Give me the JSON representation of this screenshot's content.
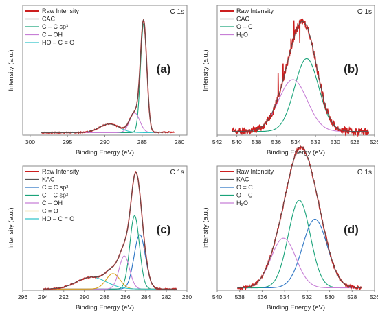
{
  "chart_data": [
    {
      "type": "line",
      "panel_label": "(a)",
      "corner_label": "C 1s",
      "xlabel": "Binding Energy (eV)",
      "ylabel": "Intensity (a.u.)",
      "xlim": [
        301,
        279
      ],
      "xticks": [
        300,
        295,
        290,
        285,
        280
      ],
      "ylim": [
        0,
        1.05
      ],
      "x_reversed": true,
      "legend": [
        "Raw Intensity",
        "CAC",
        "C – C sp³",
        "C – OH",
        "HO – C = O"
      ],
      "legend_position": "top-left",
      "series": [
        {
          "name": "Raw Intensity",
          "color": "#cc1f1f",
          "kind": "raw",
          "noise": 0.004
        },
        {
          "name": "CAC",
          "color": "#555555",
          "kind": "envelope"
        },
        {
          "name": "C – C sp³",
          "color": "#1aa37a",
          "kind": "peak",
          "center": 284.8,
          "amplitude": 0.88,
          "fwhm": 1.0
        },
        {
          "name": "C – OH",
          "color": "#c77fd6",
          "kind": "peak",
          "center": 286.0,
          "amplitude": 0.16,
          "fwhm": 1.6
        },
        {
          "name": "HO – C = O",
          "color": "#33c4c9",
          "kind": "peak",
          "center": 289.4,
          "amplitude": 0.07,
          "fwhm": 3.2
        }
      ],
      "background": [
        {
          "x": 298.5,
          "y": 0.02
        },
        {
          "x": 286.0,
          "y": 0.02
        },
        {
          "x": 284.0,
          "y": 0.02
        },
        {
          "x": 280.7,
          "y": 0.025
        }
      ],
      "x_range": [
        298.5,
        280.7
      ]
    },
    {
      "type": "line",
      "panel_label": "(b)",
      "corner_label": "O 1s",
      "xlabel": "Binding Energy (eV)",
      "ylabel": "Intensity (a.u.)",
      "xlim": [
        542,
        526
      ],
      "xticks": [
        542,
        540,
        538,
        536,
        534,
        532,
        530,
        528,
        526
      ],
      "ylim": [
        0,
        1.05
      ],
      "x_reversed": true,
      "legend": [
        "Raw Intensity",
        "CAC",
        "O – C",
        "H₂O"
      ],
      "legend_position": "top-left",
      "series": [
        {
          "name": "Raw Intensity",
          "color": "#cc1f1f",
          "kind": "raw",
          "noise": 0.03
        },
        {
          "name": "CAC",
          "color": "#555555",
          "kind": "envelope"
        },
        {
          "name": "O – C",
          "color": "#1aa37a",
          "kind": "peak",
          "center": 532.9,
          "amplitude": 0.59,
          "fwhm": 2.9
        },
        {
          "name": "H₂O",
          "color": "#c77fd6",
          "kind": "peak",
          "center": 534.3,
          "amplitude": 0.42,
          "fwhm": 3.4
        }
      ],
      "spikes": [
        {
          "x": 534.2,
          "y": 0.93
        },
        {
          "x": 534.5,
          "y": 0.78
        },
        {
          "x": 535.3,
          "y": 0.58
        },
        {
          "x": 535.8,
          "y": 0.5
        },
        {
          "x": 533.6,
          "y": 0.75
        }
      ],
      "background": [
        {
          "x": 540.5,
          "y": 0.03
        },
        {
          "x": 526.6,
          "y": 0.03
        }
      ],
      "x_range": [
        540.5,
        526.6
      ]
    },
    {
      "type": "line",
      "panel_label": "(c)",
      "corner_label": "C 1s",
      "xlabel": "Binding Energy (eV)",
      "ylabel": "Intensity (a.u.)",
      "xlim": [
        296,
        280
      ],
      "xticks": [
        296,
        294,
        292,
        290,
        288,
        286,
        284,
        282,
        280
      ],
      "ylim": [
        0,
        1.05
      ],
      "x_reversed": true,
      "legend": [
        "Raw Intensity",
        "KAC",
        "C = C sp²",
        "C – C sp³",
        "C – OH",
        "C = O",
        "HO – C = O"
      ],
      "legend_position": "top-left",
      "series": [
        {
          "name": "Raw Intensity",
          "color": "#cc1f1f",
          "kind": "raw",
          "noise": 0.004
        },
        {
          "name": "KAC",
          "color": "#555555",
          "kind": "envelope"
        },
        {
          "name": "C = C sp²",
          "color": "#2b74c4",
          "kind": "peak",
          "center": 284.6,
          "amplitude": 0.46,
          "fwhm": 1.3
        },
        {
          "name": "C – C sp³",
          "color": "#1aa37a",
          "kind": "peak",
          "center": 285.1,
          "amplitude": 0.62,
          "fwhm": 1.1
        },
        {
          "name": "C – OH",
          "color": "#c77fd6",
          "kind": "peak",
          "center": 286.1,
          "amplitude": 0.28,
          "fwhm": 1.2
        },
        {
          "name": "C = O",
          "color": "#d9a21e",
          "kind": "peak",
          "center": 287.2,
          "amplitude": 0.13,
          "fwhm": 1.6
        },
        {
          "name": "HO – C = O",
          "color": "#33c4c9",
          "kind": "peak",
          "center": 289.3,
          "amplitude": 0.1,
          "fwhm": 3.4
        }
      ],
      "background": [
        {
          "x": 294.0,
          "y": 0.01
        },
        {
          "x": 281.0,
          "y": 0.01
        }
      ],
      "x_range": [
        294.0,
        281.0
      ]
    },
    {
      "type": "line",
      "panel_label": "(d)",
      "corner_label": "O 1s",
      "xlabel": "Binding Energy (eV)",
      "ylabel": "Intensity (a.u.)",
      "xlim": [
        540,
        526
      ],
      "xticks": [
        540,
        538,
        536,
        534,
        532,
        530,
        528,
        526
      ],
      "ylim": [
        0,
        1.05
      ],
      "x_reversed": true,
      "legend": [
        "Raw Intensity",
        "KAC",
        "O = C",
        "O – C",
        "H₂O"
      ],
      "legend_position": "top-left",
      "series": [
        {
          "name": "Raw Intensity",
          "color": "#cc1f1f",
          "kind": "raw",
          "noise": 0.012
        },
        {
          "name": "KAC",
          "color": "#555555",
          "kind": "envelope"
        },
        {
          "name": "O = C",
          "color": "#2b74c4",
          "kind": "peak",
          "center": 531.3,
          "amplitude": 0.58,
          "fwhm": 2.6
        },
        {
          "name": "O – C",
          "color": "#1aa37a",
          "kind": "peak",
          "center": 532.7,
          "amplitude": 0.74,
          "fwhm": 2.3
        },
        {
          "name": "H₂O",
          "color": "#c77fd6",
          "kind": "peak",
          "center": 534.1,
          "amplitude": 0.42,
          "fwhm": 2.6
        }
      ],
      "background": [
        {
          "x": 538.2,
          "y": 0.02
        },
        {
          "x": 527.2,
          "y": 0.02
        }
      ],
      "x_range": [
        538.2,
        527.2
      ]
    }
  ]
}
